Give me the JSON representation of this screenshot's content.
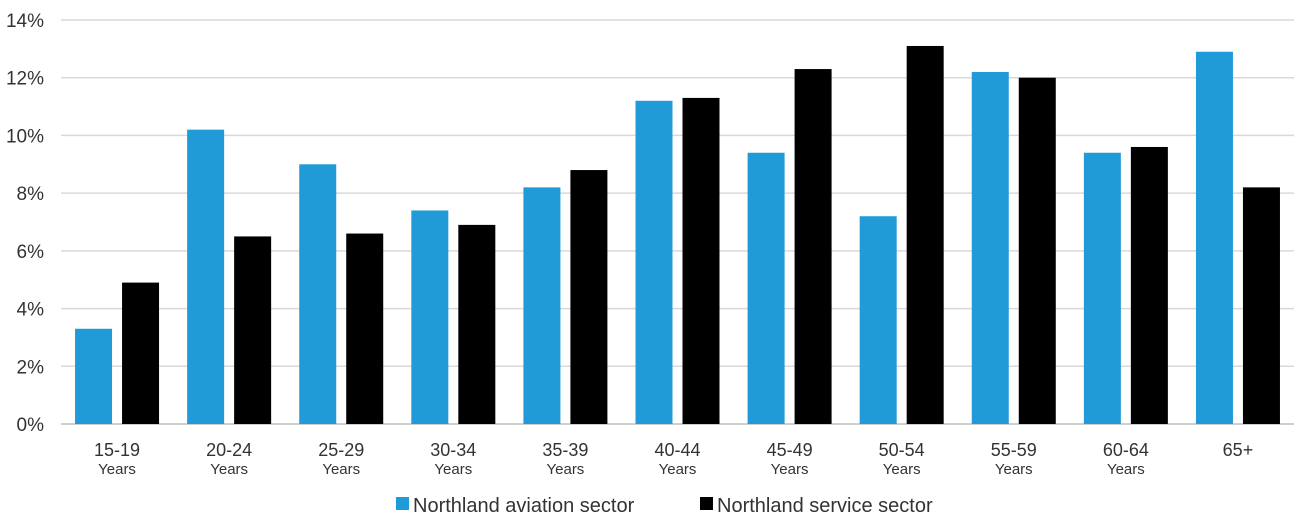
{
  "chart_data": {
    "type": "bar",
    "categories": [
      [
        "15-19",
        "Years"
      ],
      [
        "20-24",
        "Years"
      ],
      [
        "25-29",
        "Years"
      ],
      [
        "30-34",
        "Years"
      ],
      [
        "35-39",
        "Years"
      ],
      [
        "40-44",
        "Years"
      ],
      [
        "45-49",
        "Years"
      ],
      [
        "50-54",
        "Years"
      ],
      [
        "55-59",
        "Years"
      ],
      [
        "60-64",
        "Years"
      ],
      [
        "65+",
        ""
      ]
    ],
    "series": [
      {
        "name": "Northland aviation sector",
        "color": "#219ad8",
        "values": [
          3.3,
          10.2,
          9.0,
          7.4,
          8.2,
          11.2,
          9.4,
          7.2,
          12.2,
          9.4,
          12.9
        ]
      },
      {
        "name": "Northland service sector",
        "color": "#000000",
        "values": [
          4.9,
          6.5,
          6.6,
          6.9,
          8.8,
          11.3,
          12.3,
          13.1,
          12.0,
          9.6,
          8.2
        ]
      }
    ],
    "yticks": [
      "0%",
      "2%",
      "4%",
      "6%",
      "8%",
      "10%",
      "12%",
      "14%"
    ],
    "ylim": [
      0,
      14
    ],
    "y_unit": "%",
    "grid": true,
    "legend_position": "bottom",
    "title": "",
    "xlabel": "",
    "ylabel": ""
  }
}
